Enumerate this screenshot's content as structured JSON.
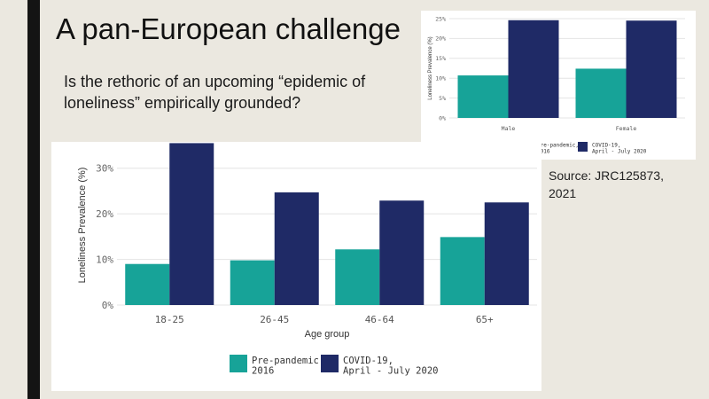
{
  "slide": {
    "title": "A pan-European challenge",
    "question": "Is the rethoric of an upcoming “epidemic of loneliness” empirically grounded?",
    "source": "Source: JRC125873, 2021"
  },
  "colors": {
    "pre_pandemic": "#17a398",
    "covid": "#1f2a66",
    "background": "#ebe8e0",
    "left_bar": "#141414"
  },
  "chart_data": [
    {
      "type": "bar",
      "categories": [
        "Male",
        "Female"
      ],
      "series": [
        {
          "name": "Pre-pandemic,|2016",
          "values": [
            10.7,
            12.4
          ]
        },
        {
          "name": "COVID-19,|April - July 2020",
          "values": [
            24.6,
            24.5
          ]
        }
      ],
      "ylabel": "Loneliness Prevalence (%)",
      "xlabel": "",
      "ylim": [
        0,
        25
      ],
      "yticks": [
        0,
        5,
        10,
        15,
        20,
        25
      ],
      "ytick_labels": [
        "0%",
        "5%",
        "10%",
        "15%",
        "20%",
        "25%"
      ],
      "grid": true,
      "legend": "bottom"
    },
    {
      "type": "bar",
      "categories": [
        "18-25",
        "26-45",
        "46-64",
        "65+"
      ],
      "series": [
        {
          "name": "Pre-pandemic,|2016",
          "values": [
            9.0,
            9.8,
            12.2,
            14.9
          ]
        },
        {
          "name": "COVID-19,|April - July 2020",
          "values": [
            35.5,
            24.7,
            22.9,
            22.5
          ]
        }
      ],
      "ylabel": "Loneliness Prevalence (%)",
      "xlabel": "Age group",
      "ylim": [
        0,
        35
      ],
      "yticks": [
        0,
        10,
        20,
        30
      ],
      "ytick_labels": [
        "0%",
        "10%",
        "20%",
        "30%"
      ],
      "grid": true,
      "legend": "bottom"
    }
  ]
}
